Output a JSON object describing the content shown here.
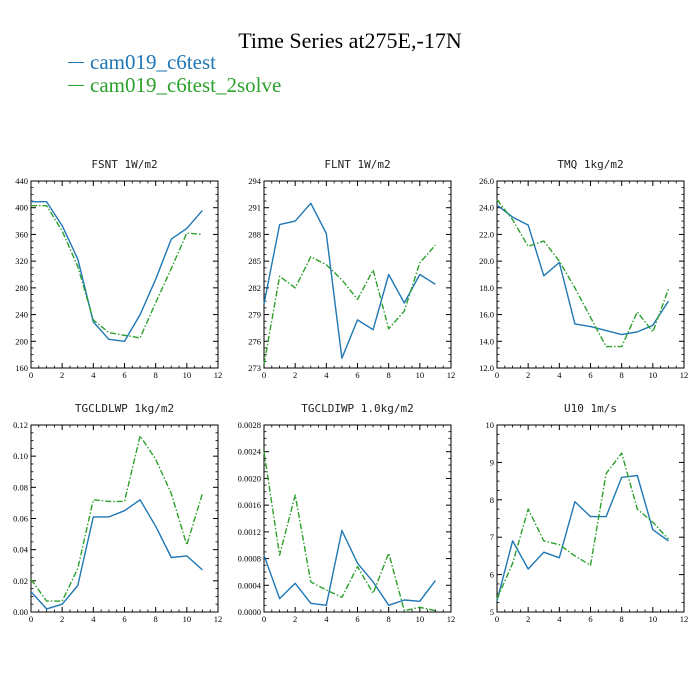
{
  "title": "Time Series at275E,-17N",
  "legend": [
    {
      "label": "cam019_c6test",
      "color": "#1f77b4"
    },
    {
      "label": "cam019_c6test_2solve",
      "color": "#2ca02c"
    }
  ],
  "chart_data": [
    {
      "type": "line",
      "title": "FSNT 1W/m2",
      "x": [
        0,
        1,
        2,
        3,
        4,
        5,
        6,
        7,
        8,
        9,
        10,
        11
      ],
      "xlim": [
        0,
        12
      ],
      "xticks": [
        "0",
        "2",
        "4",
        "6",
        "8",
        "10",
        "12"
      ],
      "ylim": [
        160,
        440
      ],
      "yticks": [
        "160",
        "200",
        "240",
        "280",
        "320",
        "360",
        "400",
        "440"
      ],
      "series": [
        {
          "name": "cam019_c6test",
          "values": [
            409,
            409,
            373,
            323,
            229,
            203,
            200,
            240,
            293,
            353,
            369,
            396
          ]
        },
        {
          "name": "cam019_c6test_2solve",
          "values": [
            403,
            403,
            365,
            312,
            232,
            213,
            209,
            205,
            258,
            309,
            362,
            360
          ]
        }
      ]
    },
    {
      "type": "line",
      "title": "FLNT 1W/m2",
      "x": [
        0,
        1,
        2,
        3,
        4,
        5,
        6,
        7,
        8,
        9,
        10,
        11
      ],
      "xlim": [
        0,
        12
      ],
      "xticks": [
        "0",
        "2",
        "4",
        "6",
        "8",
        "10",
        "12"
      ],
      "ylim": [
        273,
        294
      ],
      "yticks": [
        "273",
        "276",
        "279",
        "282",
        "285",
        "288",
        "291",
        "294"
      ],
      "series": [
        {
          "name": "cam019_c6test",
          "values": [
            280.2,
            289.1,
            289.5,
            291.5,
            288.1,
            274.1,
            278.4,
            277.3,
            283.5,
            280.3,
            283.5,
            282.4
          ]
        },
        {
          "name": "cam019_c6test_2solve",
          "values": [
            273.4,
            283.3,
            282.0,
            285.5,
            284.6,
            282.9,
            280.7,
            284.0,
            277.4,
            279.4,
            284.8,
            286.8
          ]
        }
      ]
    },
    {
      "type": "line",
      "title": "TMQ 1kg/m2",
      "x": [
        0,
        1,
        2,
        3,
        4,
        5,
        6,
        7,
        8,
        9,
        10,
        11
      ],
      "xlim": [
        0,
        12
      ],
      "xticks": [
        "0",
        "2",
        "4",
        "6",
        "8",
        "10",
        "12"
      ],
      "ylim": [
        12,
        26
      ],
      "yticks": [
        "12.0",
        "14.0",
        "16.0",
        "18.0",
        "20.0",
        "22.0",
        "24.0",
        "26.0"
      ],
      "series": [
        {
          "name": "cam019_c6test",
          "values": [
            24.2,
            23.3,
            22.7,
            18.9,
            19.9,
            15.3,
            15.1,
            14.8,
            14.5,
            14.7,
            15.2,
            17.0
          ]
        },
        {
          "name": "cam019_c6test_2solve",
          "values": [
            24.6,
            23.1,
            21.1,
            21.5,
            20.0,
            18.0,
            15.8,
            13.6,
            13.6,
            16.2,
            14.7,
            17.9
          ]
        }
      ]
    },
    {
      "type": "line",
      "title": "TGCLDLWP 1kg/m2",
      "x": [
        0,
        1,
        2,
        3,
        4,
        5,
        6,
        7,
        8,
        9,
        10,
        11
      ],
      "xlim": [
        0,
        12
      ],
      "xticks": [
        "0",
        "2",
        "4",
        "6",
        "8",
        "10",
        "12"
      ],
      "ylim": [
        0,
        0.12
      ],
      "yticks": [
        "0.00",
        "0.02",
        "0.04",
        "0.06",
        "0.08",
        "0.10",
        "0.12"
      ],
      "series": [
        {
          "name": "cam019_c6test",
          "values": [
            0.013,
            0.002,
            0.005,
            0.017,
            0.061,
            0.061,
            0.065,
            0.072,
            0.055,
            0.035,
            0.036,
            0.027
          ]
        },
        {
          "name": "cam019_c6test_2solve",
          "values": [
            0.021,
            0.007,
            0.007,
            0.028,
            0.072,
            0.071,
            0.071,
            0.113,
            0.098,
            0.076,
            0.043,
            0.076
          ]
        }
      ]
    },
    {
      "type": "line",
      "title": "TGCLDIWP 1.0kg/m2",
      "x": [
        0,
        1,
        2,
        3,
        4,
        5,
        6,
        7,
        8,
        9,
        10,
        11
      ],
      "xlim": [
        0,
        12
      ],
      "xticks": [
        "0",
        "2",
        "4",
        "6",
        "8",
        "10",
        "12"
      ],
      "ylim": [
        0,
        0.0028
      ],
      "yticks": [
        "0.0000",
        "0.0004",
        "0.0008",
        "0.0012",
        "0.0016",
        "0.0020",
        "0.0024",
        "0.0028"
      ],
      "series": [
        {
          "name": "cam019_c6test",
          "values": [
            0.00085,
            0.0002,
            0.00043,
            0.00013,
            0.0001,
            0.00122,
            0.00073,
            0.00045,
            0.0001,
            0.00018,
            0.00016,
            0.00047
          ]
        },
        {
          "name": "cam019_c6test_2solve",
          "values": [
            0.0024,
            0.00085,
            0.00175,
            0.00045,
            0.00033,
            0.00022,
            0.00068,
            0.00028,
            0.00088,
            2e-05,
            7e-05,
            2e-05
          ]
        }
      ]
    },
    {
      "type": "line",
      "title": "U10 1m/s",
      "x": [
        0,
        1,
        2,
        3,
        4,
        5,
        6,
        7,
        8,
        9,
        10,
        11
      ],
      "xlim": [
        0,
        12
      ],
      "xticks": [
        "0",
        "2",
        "4",
        "6",
        "8",
        "10",
        "12"
      ],
      "ylim": [
        5,
        10
      ],
      "yticks": [
        "5",
        "6",
        "7",
        "8",
        "9",
        "10"
      ],
      "series": [
        {
          "name": "cam019_c6test",
          "values": [
            5.3,
            6.9,
            6.15,
            6.6,
            6.45,
            7.95,
            7.55,
            7.55,
            8.6,
            8.65,
            7.2,
            6.9
          ]
        },
        {
          "name": "cam019_c6test_2solve",
          "values": [
            5.35,
            6.3,
            7.75,
            6.9,
            6.8,
            6.5,
            6.25,
            8.7,
            9.25,
            7.75,
            7.4,
            6.95
          ]
        }
      ]
    }
  ]
}
